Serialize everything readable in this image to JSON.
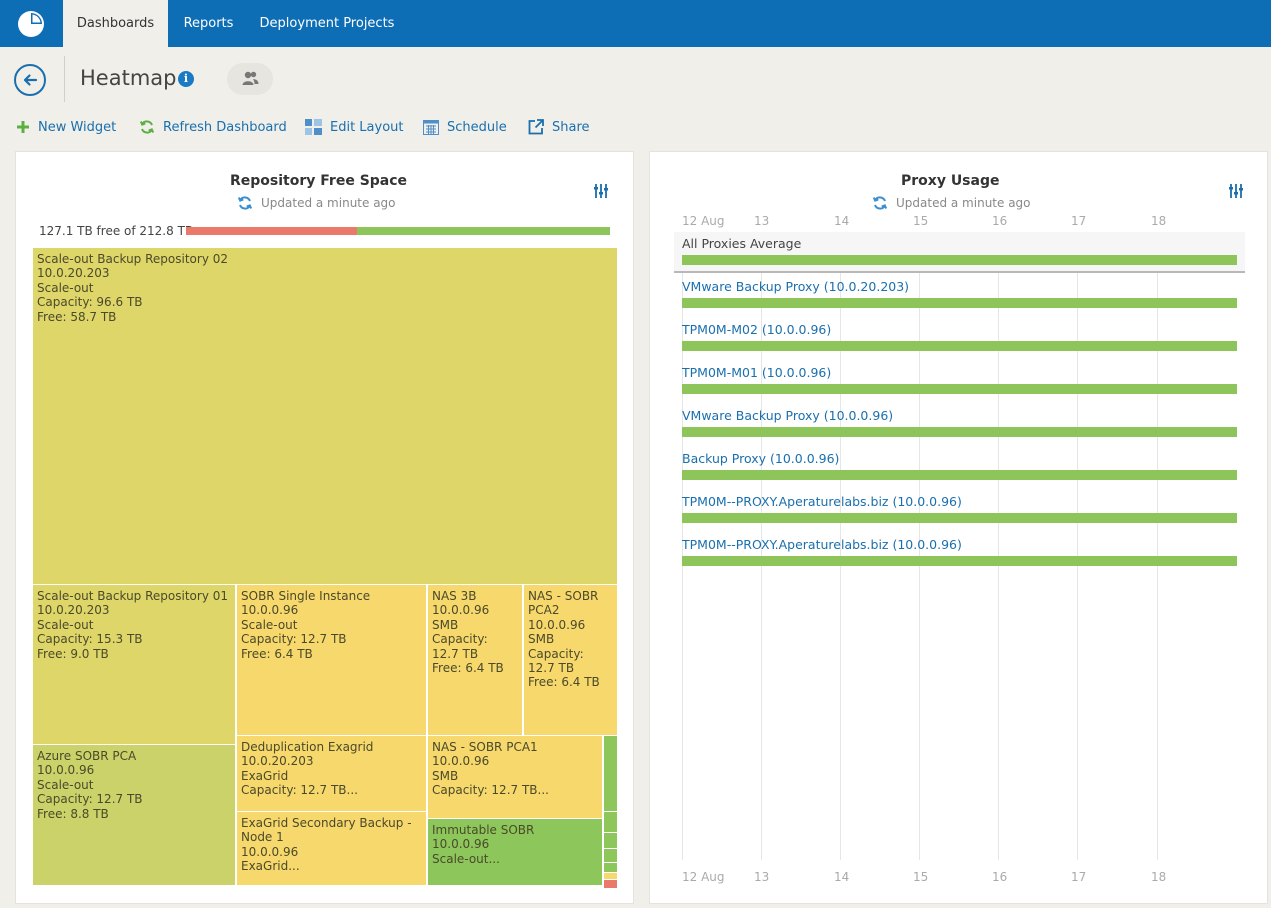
{
  "nav": {
    "tabs": [
      {
        "label": "Dashboards",
        "active": true
      },
      {
        "label": "Reports",
        "active": false
      },
      {
        "label": "Deployment Projects",
        "active": false
      }
    ]
  },
  "header": {
    "title": "Heatmap",
    "info": "i"
  },
  "toolbar": {
    "new_widget": "New Widget",
    "refresh": "Refresh Dashboard",
    "edit_layout": "Edit Layout",
    "schedule": "Schedule",
    "share": "Share"
  },
  "repo_widget": {
    "title": "Repository Free Space",
    "updated": "Updated a minute ago",
    "capacity_text": "127.1 TB free of 212.8 TB",
    "used_fraction": 0.403,
    "tiles": [
      {
        "lines": [
          "Scale-out Backup Repository 02",
          "10.0.20.203",
          "Scale-out",
          "Capacity: 96.6 TB",
          "Free: 58.7 TB"
        ]
      },
      {
        "lines": [
          "Scale-out Backup Repository 01",
          "10.0.20.203",
          "Scale-out",
          "Capacity: 15.3 TB",
          "Free: 9.0 TB"
        ]
      },
      {
        "lines": [
          "SOBR Single Instance",
          "10.0.0.96",
          "Scale-out",
          "Capacity: 12.7 TB",
          "Free: 6.4 TB"
        ]
      },
      {
        "lines": [
          "NAS 3B",
          "10.0.0.96",
          "SMB",
          "Capacity: 12.7 TB",
          "Free: 6.4 TB"
        ]
      },
      {
        "lines": [
          "NAS - SOBR PCA2",
          "10.0.0.96",
          "SMB",
          "Capacity: 12.7 TB",
          "Free: 6.4 TB"
        ]
      },
      {
        "lines": [
          "Azure SOBR PCA",
          "10.0.0.96",
          "Scale-out",
          "Capacity: 12.7 TB",
          "Free: 8.8 TB"
        ]
      },
      {
        "lines": [
          "Deduplication Exagrid",
          "10.0.20.203",
          "ExaGrid",
          "Capacity: 12.7 TB..."
        ]
      },
      {
        "lines": [
          "NAS - SOBR PCA1",
          "10.0.0.96",
          "SMB",
          "Capacity: 12.7 TB..."
        ]
      },
      {
        "lines": [
          "ExaGrid Secondary Backup - Node 1",
          "10.0.0.96",
          "ExaGrid..."
        ]
      },
      {
        "lines": [
          "Immutable SOBR",
          "10.0.0.96",
          "Scale-out..."
        ]
      }
    ]
  },
  "proxy_widget": {
    "title": "Proxy Usage",
    "updated": "Updated a minute ago",
    "axis_labels": [
      "12 Aug",
      "13",
      "14",
      "15",
      "16",
      "17",
      "18"
    ],
    "rows": [
      {
        "label": "All Proxies Average",
        "usage": 1.0
      },
      {
        "label": "VMware Backup Proxy (10.0.20.203)",
        "usage": 1.0
      },
      {
        "label": "TPM0M-M02 (10.0.0.96)",
        "usage": 1.0
      },
      {
        "label": "TPM0M-M01 (10.0.0.96)",
        "usage": 1.0
      },
      {
        "label": "VMware Backup Proxy (10.0.0.96)",
        "usage": 1.0
      },
      {
        "label": "Backup Proxy (10.0.0.96)",
        "usage": 1.0
      },
      {
        "label": "TPM0M--PROXY.Aperaturelabs.biz (10.0.0.96)",
        "usage": 1.0
      },
      {
        "label": "TPM0M--PROXY.Aperaturelabs.biz (10.0.0.96)",
        "usage": 1.0
      }
    ]
  },
  "colors": {
    "nav": "#0d6db5",
    "link": "#1a6fae",
    "used_red": "#e8796b",
    "free_green": "#8dc55a",
    "tile_olive": "#dfd66a",
    "tile_yellow": "#f7d86d",
    "tile_olive_green": "#cbd26a",
    "tile_green": "#8dc75c"
  }
}
